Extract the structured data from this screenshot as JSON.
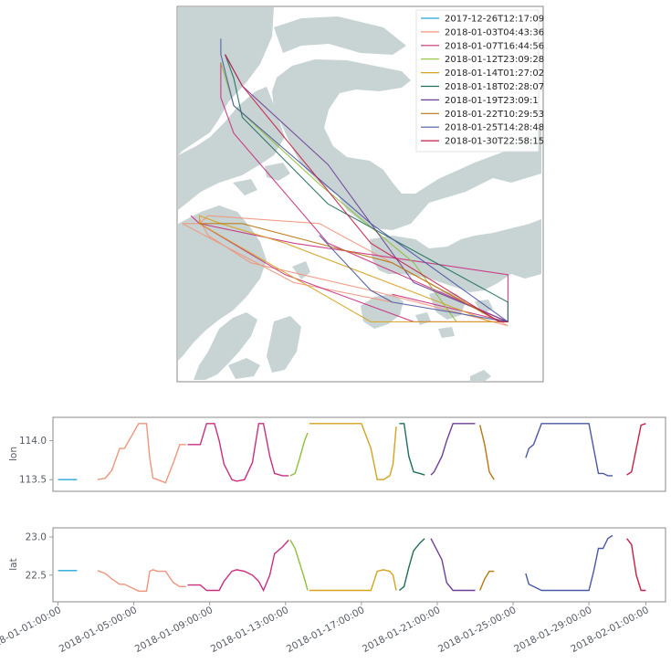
{
  "chart_data": [
    {
      "type": "map",
      "legend": {
        "placement": "top-right",
        "entries": [
          {
            "label": "2017-12-26T12:17:09",
            "color": "#1fa8d8"
          },
          {
            "label": "2018-01-03T04:43:36",
            "color": "#f0957c"
          },
          {
            "label": "2018-01-07T16:44:56",
            "color": "#c92f7e"
          },
          {
            "label": "2018-01-12T23:09:28",
            "color": "#8dbf3a"
          },
          {
            "label": "2018-01-14T01:27:02",
            "color": "#d6a320"
          },
          {
            "label": "2018-01-18T02:28:07",
            "color": "#1d6e5c"
          },
          {
            "label": "2018-01-19T23:09:1",
            "color": "#6e3f98"
          },
          {
            "label": "2018-01-22T10:29:53",
            "color": "#b8760f"
          },
          {
            "label": "2018-01-25T14:28:48",
            "color": "#4a58a3"
          },
          {
            "label": "2018-01-30T22:58:15",
            "color": "#c51f46"
          }
        ]
      },
      "land_color": "#c8d3d4",
      "water_color": "#ffffff"
    },
    {
      "type": "line",
      "ylabel": "lon",
      "yticks": [
        113.5,
        114.0
      ],
      "ytick_labels": [
        "113.5",
        "114.0"
      ],
      "ylim": [
        113.35,
        114.3
      ]
    },
    {
      "type": "line",
      "ylabel": "lat",
      "yticks": [
        22.5,
        23.0
      ],
      "ytick_labels": [
        "22.5",
        "23.0"
      ],
      "ylim": [
        22.15,
        23.12
      ]
    }
  ],
  "x_axis": {
    "scale": "date",
    "range": [
      "2017-12-31T17:30:00",
      "2018-02-02T01:00:00"
    ],
    "ticks": [
      "2018-01-01T00:00:00",
      "2018-01-05T00:00:00",
      "2018-01-09T00:00:00",
      "2018-01-13T00:00:00",
      "2018-01-17T00:00:00",
      "2018-01-21T00:00:00",
      "2018-01-25T00:00:00",
      "2018-01-29T00:00:00",
      "2018-02-01T00:00:00"
    ],
    "tick_labels": [
      "2018-01-01:00:00",
      "2018-01-05:00:00",
      "2018-01-09:00:00",
      "2018-01-13:00:00",
      "2018-01-17:00:00",
      "2018-01-21:00:00",
      "2018-01-25:00:00",
      "2018-01-29:00:00",
      "2018-02-01:00:00"
    ]
  },
  "series": [
    {
      "name": "2017-12-26T12:17:09",
      "color": "#1fa8d8",
      "lon": [
        [
          0,
          113.5
        ],
        [
          1,
          113.5
        ]
      ],
      "lat": [
        [
          0,
          22.56
        ],
        [
          1,
          22.56
        ]
      ],
      "t": [
        "2018-01-01T00:00:00",
        "2018-01-02T00:00:00"
      ]
    },
    {
      "name": "2018-01-03T04:43:36",
      "color": "#f0957c",
      "t": [
        "2018-01-03T02:00:00",
        "2018-01-03T12:00:00",
        "2018-01-03T20:00:00",
        "2018-01-04T06:00:00",
        "2018-01-04T12:00:00",
        "2018-01-05T06:00:00",
        "2018-01-05T10:00:00",
        "2018-01-05T12:00:00",
        "2018-01-05T16:00:00",
        "2018-01-05T20:00:00",
        "2018-01-06T00:00:00",
        "2018-01-06T06:00:00",
        "2018-01-06T16:00:00",
        "2018-01-07T02:00:00",
        "2018-01-07T10:00:00",
        "2018-01-07T18:00:00"
      ],
      "lon": [
        113.5,
        113.52,
        113.62,
        113.9,
        113.9,
        114.22,
        114.22,
        114.22,
        114.22,
        113.78,
        113.52,
        113.5,
        113.46,
        113.72,
        113.95,
        113.95
      ],
      "lat": [
        22.56,
        22.52,
        22.45,
        22.38,
        22.38,
        22.29,
        22.29,
        22.29,
        22.29,
        22.55,
        22.57,
        22.55,
        22.55,
        22.4,
        22.35,
        22.35
      ]
    },
    {
      "name": "2018-01-07T16:44:56",
      "color": "#c92f7e",
      "t": [
        "2018-01-07T20:00:00",
        "2018-01-08T12:00:00",
        "2018-01-08T20:00:00",
        "2018-01-09T06:00:00",
        "2018-01-09T12:00:00",
        "2018-01-09T18:00:00",
        "2018-01-10T04:00:00",
        "2018-01-10T10:00:00",
        "2018-01-10T20:00:00",
        "2018-01-11T06:00:00",
        "2018-01-11T14:00:00",
        "2018-01-11T20:00:00",
        "2018-01-12T04:00:00",
        "2018-01-12T10:00:00",
        "2018-01-12T20:00:00",
        "2018-01-13T04:00:00"
      ],
      "lon": [
        113.95,
        113.95,
        114.22,
        114.22,
        114.0,
        113.7,
        113.5,
        113.48,
        113.5,
        113.72,
        114.22,
        114.22,
        113.8,
        113.58,
        113.55,
        113.55
      ],
      "lat": [
        22.37,
        22.37,
        22.3,
        22.3,
        22.3,
        22.42,
        22.55,
        22.57,
        22.55,
        22.5,
        22.42,
        22.3,
        22.5,
        22.78,
        22.87,
        22.96
      ]
    },
    {
      "name": "2018-01-12T23:09:28",
      "color": "#8dbf3a",
      "t": [
        "2018-01-13T06:00:00",
        "2018-01-13T12:00:00",
        "2018-01-13T18:00:00",
        "2018-01-14T00:00:00",
        "2018-01-14T04:00:00"
      ],
      "lon": [
        113.55,
        113.58,
        113.78,
        114.0,
        114.1
      ],
      "lat": [
        22.96,
        22.85,
        22.65,
        22.45,
        22.3
      ]
    },
    {
      "name": "2018-01-14T01:27:02",
      "color": "#d6a320",
      "t": [
        "2018-01-14T06:00:00",
        "2018-01-15T00:00:00",
        "2018-01-15T12:00:00",
        "2018-01-16T00:00:00",
        "2018-01-16T12:00:00",
        "2018-01-17T00:00:00",
        "2018-01-17T12:00:00",
        "2018-01-17T20:00:00",
        "2018-01-18T04:00:00",
        "2018-01-18T12:00:00",
        "2018-01-18T16:00:00",
        "2018-01-18T20:00:00"
      ],
      "lon": [
        114.22,
        114.22,
        114.22,
        114.22,
        114.22,
        114.22,
        113.9,
        113.5,
        113.5,
        113.55,
        113.7,
        114.18
      ],
      "lat": [
        22.3,
        22.3,
        22.3,
        22.3,
        22.3,
        22.3,
        22.3,
        22.55,
        22.57,
        22.55,
        22.5,
        22.3
      ]
    },
    {
      "name": "2018-01-18T02:28:07",
      "color": "#1d6e5c",
      "t": [
        "2018-01-19T00:00:00",
        "2018-01-19T06:00:00",
        "2018-01-19T12:00:00",
        "2018-01-19T18:00:00",
        "2018-01-20T02:00:00",
        "2018-01-20T08:00:00"
      ],
      "lon": [
        114.22,
        114.22,
        113.8,
        113.6,
        113.58,
        113.56
      ],
      "lat": [
        22.3,
        22.35,
        22.6,
        22.82,
        22.92,
        22.98
      ]
    },
    {
      "name": "2018-01-19T23:09:1",
      "color": "#6e3f98",
      "t": [
        "2018-01-20T16:00:00",
        "2018-01-20T20:00:00",
        "2018-01-21T06:00:00",
        "2018-01-21T12:00:00",
        "2018-01-21T20:00:00",
        "2018-01-22T06:00:00",
        "2018-01-22T12:00:00",
        "2018-01-23T00:00:00"
      ],
      "lon": [
        113.56,
        113.6,
        113.8,
        114.0,
        114.22,
        114.22,
        114.22,
        114.22
      ],
      "lat": [
        22.98,
        22.9,
        22.7,
        22.4,
        22.3,
        22.3,
        22.3,
        22.3
      ]
    },
    {
      "name": "2018-01-22T10:29:53",
      "color": "#b8760f",
      "t": [
        "2018-01-23T06:00:00",
        "2018-01-23T12:00:00",
        "2018-01-23T18:00:00",
        "2018-01-24T00:00:00"
      ],
      "lon": [
        114.2,
        113.95,
        113.6,
        113.5
      ],
      "lat": [
        22.3,
        22.45,
        22.55,
        22.55
      ]
    },
    {
      "name": "2018-01-25T14:28:48",
      "color": "#4a58a3",
      "t": [
        "2018-01-25T16:00:00",
        "2018-01-25T20:00:00",
        "2018-01-26T02:00:00",
        "2018-01-26T12:00:00",
        "2018-01-27T12:00:00",
        "2018-01-28T12:00:00",
        "2018-01-29T00:00:00",
        "2018-01-29T06:00:00",
        "2018-01-29T12:00:00",
        "2018-01-29T18:00:00",
        "2018-01-30T00:00:00",
        "2018-01-30T06:00:00"
      ],
      "lon": [
        113.78,
        113.9,
        113.95,
        114.22,
        114.22,
        114.22,
        114.22,
        113.9,
        113.58,
        113.58,
        113.55,
        113.55
      ],
      "lat": [
        22.52,
        22.38,
        22.35,
        22.3,
        22.3,
        22.3,
        22.3,
        22.55,
        22.85,
        22.85,
        22.98,
        23.02
      ]
    },
    {
      "name": "2018-01-30T22:58:15",
      "color": "#c51f46",
      "t": [
        "2018-01-31T00:00:00",
        "2018-01-31T06:00:00",
        "2018-01-31T12:00:00",
        "2018-01-31T18:00:00",
        "2018-02-01T00:00:00"
      ],
      "lon": [
        113.56,
        113.6,
        113.9,
        114.2,
        114.22
      ],
      "lat": [
        22.98,
        22.9,
        22.5,
        22.3,
        22.3
      ]
    }
  ]
}
